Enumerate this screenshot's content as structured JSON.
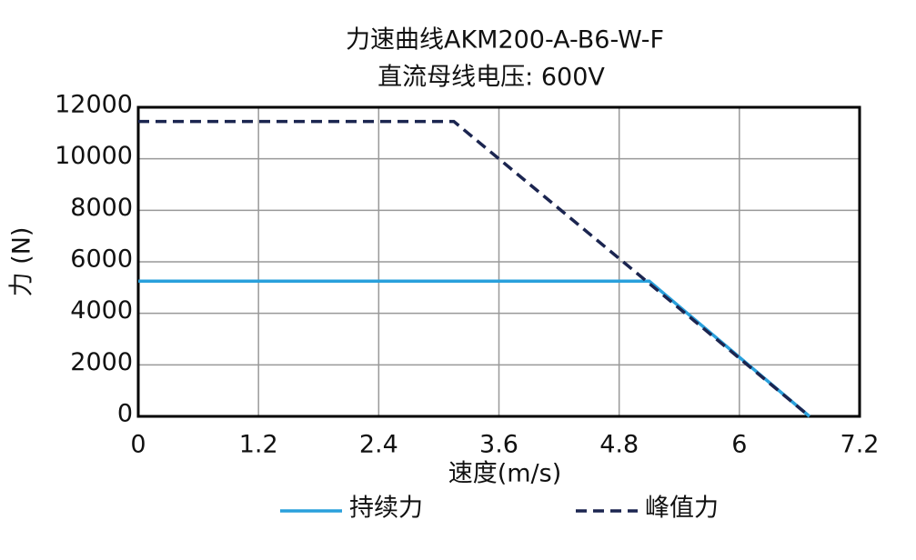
{
  "chart_data": {
    "type": "line",
    "title": "力速曲线AKM200-A-B6-W-F",
    "subtitle": "直流母线电压: 600V",
    "xlabel": "速度(m/s)",
    "ylabel": "力 (N)",
    "xlim": [
      0,
      7.2
    ],
    "xticks": [
      0,
      1.2,
      2.4,
      3.6,
      4.8,
      6,
      7.2
    ],
    "ylim": [
      0,
      12000
    ],
    "yticks": [
      0,
      2000,
      4000,
      6000,
      8000,
      10000,
      12000
    ],
    "grid": true,
    "legend": "bottom",
    "series": [
      {
        "name": "持续力",
        "color": "#29a0dc",
        "dash": false,
        "x": [
          0,
          5.1,
          6.7
        ],
        "values": [
          5250,
          5250,
          0
        ]
      },
      {
        "name": "峰值力",
        "color": "#1b2550",
        "dash": true,
        "x": [
          0,
          3.15,
          6.7
        ],
        "values": [
          11450,
          11450,
          0
        ]
      }
    ]
  }
}
